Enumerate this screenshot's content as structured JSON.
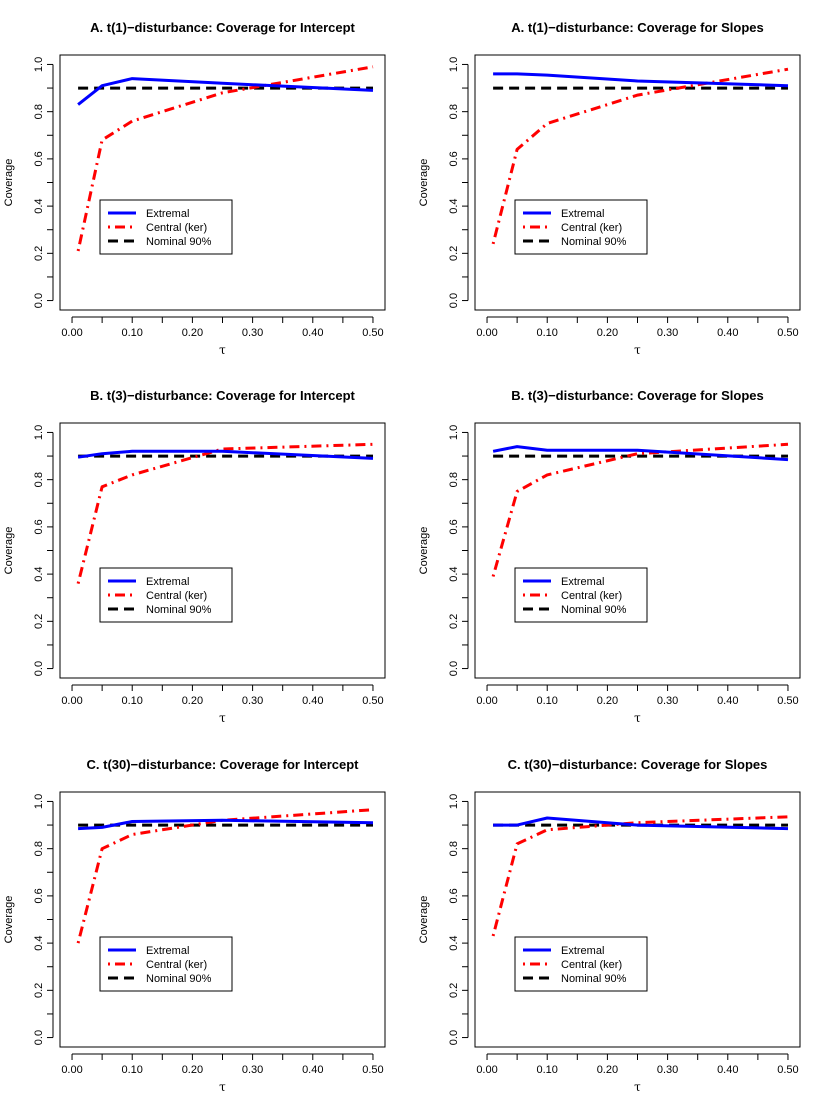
{
  "chart_data": [
    {
      "type": "line",
      "title": "A. t(1)−disturbance: Coverage for Intercept",
      "xlabel": "τ",
      "ylabel": "Coverage",
      "xlim": [
        0.0,
        0.5
      ],
      "ylim": [
        0.0,
        1.0
      ],
      "x_ticks": [
        "0.00",
        "0.10",
        "0.20",
        "0.30",
        "0.40",
        "0.50"
      ],
      "y_ticks": [
        "0.0",
        "0.2",
        "0.4",
        "0.6",
        "0.8",
        "1.0"
      ],
      "x": [
        0.01,
        0.05,
        0.1,
        0.25,
        0.5
      ],
      "series": [
        {
          "name": "Extremal",
          "values": [
            0.83,
            0.91,
            0.94,
            0.92,
            0.89
          ],
          "color": "#0000ff",
          "style": "solid"
        },
        {
          "name": "Central (ker)",
          "values": [
            0.21,
            0.68,
            0.76,
            0.88,
            0.99
          ],
          "color": "#ff0000",
          "style": "dotdash"
        },
        {
          "name": "Nominal 90%",
          "values": [
            0.9,
            0.9,
            0.9,
            0.9,
            0.9
          ],
          "color": "#000000",
          "style": "dashed"
        }
      ]
    },
    {
      "type": "line",
      "title": "A. t(1)−disturbance: Coverage for Slopes",
      "xlabel": "τ",
      "ylabel": "Coverage",
      "xlim": [
        0.0,
        0.5
      ],
      "ylim": [
        0.0,
        1.0
      ],
      "x_ticks": [
        "0.00",
        "0.10",
        "0.20",
        "0.30",
        "0.40",
        "0.50"
      ],
      "y_ticks": [
        "0.0",
        "0.2",
        "0.4",
        "0.6",
        "0.8",
        "1.0"
      ],
      "x": [
        0.01,
        0.05,
        0.1,
        0.25,
        0.5
      ],
      "series": [
        {
          "name": "Extremal",
          "values": [
            0.96,
            0.96,
            0.955,
            0.93,
            0.91
          ],
          "color": "#0000ff",
          "style": "solid"
        },
        {
          "name": "Central (ker)",
          "values": [
            0.24,
            0.64,
            0.75,
            0.87,
            0.98
          ],
          "color": "#ff0000",
          "style": "dotdash"
        },
        {
          "name": "Nominal 90%",
          "values": [
            0.9,
            0.9,
            0.9,
            0.9,
            0.9
          ],
          "color": "#000000",
          "style": "dashed"
        }
      ]
    },
    {
      "type": "line",
      "title": "B. t(3)−disturbance: Coverage for Intercept",
      "xlabel": "τ",
      "ylabel": "Coverage",
      "xlim": [
        0.0,
        0.5
      ],
      "ylim": [
        0.0,
        1.0
      ],
      "x_ticks": [
        "0.00",
        "0.10",
        "0.20",
        "0.30",
        "0.40",
        "0.50"
      ],
      "y_ticks": [
        "0.0",
        "0.2",
        "0.4",
        "0.6",
        "0.8",
        "1.0"
      ],
      "x": [
        0.01,
        0.05,
        0.1,
        0.25,
        0.5
      ],
      "series": [
        {
          "name": "Extremal",
          "values": [
            0.895,
            0.91,
            0.92,
            0.92,
            0.89
          ],
          "color": "#0000ff",
          "style": "solid"
        },
        {
          "name": "Central (ker)",
          "values": [
            0.36,
            0.77,
            0.82,
            0.93,
            0.95
          ],
          "color": "#ff0000",
          "style": "dotdash"
        },
        {
          "name": "Nominal 90%",
          "values": [
            0.9,
            0.9,
            0.9,
            0.9,
            0.9
          ],
          "color": "#000000",
          "style": "dashed"
        }
      ]
    },
    {
      "type": "line",
      "title": "B. t(3)−disturbance: Coverage for Slopes",
      "xlabel": "τ",
      "ylabel": "Coverage",
      "xlim": [
        0.0,
        0.5
      ],
      "ylim": [
        0.0,
        1.0
      ],
      "x_ticks": [
        "0.00",
        "0.10",
        "0.20",
        "0.30",
        "0.40",
        "0.50"
      ],
      "y_ticks": [
        "0.0",
        "0.2",
        "0.4",
        "0.6",
        "0.8",
        "1.0"
      ],
      "x": [
        0.01,
        0.05,
        0.1,
        0.25,
        0.5
      ],
      "series": [
        {
          "name": "Extremal",
          "values": [
            0.92,
            0.94,
            0.925,
            0.925,
            0.885
          ],
          "color": "#0000ff",
          "style": "solid"
        },
        {
          "name": "Central (ker)",
          "values": [
            0.39,
            0.75,
            0.82,
            0.91,
            0.95
          ],
          "color": "#ff0000",
          "style": "dotdash"
        },
        {
          "name": "Nominal 90%",
          "values": [
            0.9,
            0.9,
            0.9,
            0.9,
            0.9
          ],
          "color": "#000000",
          "style": "dashed"
        }
      ]
    },
    {
      "type": "line",
      "title": "C. t(30)−disturbance: Coverage for Intercept",
      "xlabel": "τ",
      "ylabel": "Coverage",
      "xlim": [
        0.0,
        0.5
      ],
      "ylim": [
        0.0,
        1.0
      ],
      "x_ticks": [
        "0.00",
        "0.10",
        "0.20",
        "0.30",
        "0.40",
        "0.50"
      ],
      "y_ticks": [
        "0.0",
        "0.2",
        "0.4",
        "0.6",
        "0.8",
        "1.0"
      ],
      "x": [
        0.01,
        0.05,
        0.1,
        0.25,
        0.5
      ],
      "series": [
        {
          "name": "Extremal",
          "values": [
            0.885,
            0.89,
            0.915,
            0.92,
            0.91
          ],
          "color": "#0000ff",
          "style": "solid"
        },
        {
          "name": "Central (ker)",
          "values": [
            0.4,
            0.8,
            0.86,
            0.92,
            0.965
          ],
          "color": "#ff0000",
          "style": "dotdash"
        },
        {
          "name": "Nominal 90%",
          "values": [
            0.9,
            0.9,
            0.9,
            0.9,
            0.9
          ],
          "color": "#000000",
          "style": "dashed"
        }
      ]
    },
    {
      "type": "line",
      "title": "C. t(30)−disturbance: Coverage for Slopes",
      "xlabel": "τ",
      "ylabel": "Coverage",
      "xlim": [
        0.0,
        0.5
      ],
      "ylim": [
        0.0,
        1.0
      ],
      "x_ticks": [
        "0.00",
        "0.10",
        "0.20",
        "0.30",
        "0.40",
        "0.50"
      ],
      "y_ticks": [
        "0.0",
        "0.2",
        "0.4",
        "0.6",
        "0.8",
        "1.0"
      ],
      "x": [
        0.01,
        0.05,
        0.1,
        0.25,
        0.5
      ],
      "series": [
        {
          "name": "Extremal",
          "values": [
            0.9,
            0.9,
            0.93,
            0.9,
            0.885
          ],
          "color": "#0000ff",
          "style": "solid"
        },
        {
          "name": "Central (ker)",
          "values": [
            0.43,
            0.82,
            0.88,
            0.91,
            0.935
          ],
          "color": "#ff0000",
          "style": "dotdash"
        },
        {
          "name": "Nominal 90%",
          "values": [
            0.9,
            0.9,
            0.9,
            0.9,
            0.9
          ],
          "color": "#000000",
          "style": "dashed"
        }
      ]
    }
  ]
}
